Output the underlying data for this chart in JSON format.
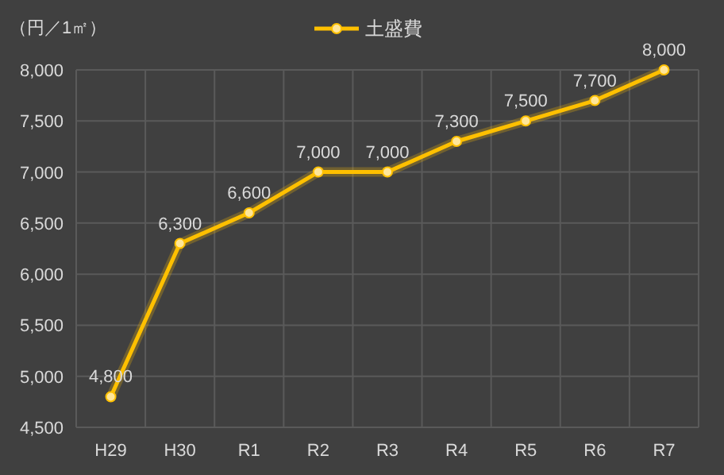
{
  "chart_data": {
    "type": "line",
    "ylabel": "（円／1㎡）",
    "categories": [
      "H29",
      "H30",
      "R1",
      "R2",
      "R3",
      "R4",
      "R5",
      "R6",
      "R7"
    ],
    "series": [
      {
        "name": "土盛費",
        "color": "#ffc000",
        "values": [
          4800,
          6300,
          6600,
          7000,
          7000,
          7300,
          7500,
          7700,
          8000
        ],
        "value_labels": [
          "4,800",
          "6,300",
          "6,600",
          "7,000",
          "7,000",
          "7,300",
          "7,500",
          "7,700",
          "8,000"
        ]
      }
    ],
    "ylim": [
      4500,
      8000
    ],
    "yticks": [
      {
        "value": 4500,
        "label": "4,500"
      },
      {
        "value": 5000,
        "label": "5,000"
      },
      {
        "value": 5500,
        "label": "5,500"
      },
      {
        "value": 6000,
        "label": "6,000"
      },
      {
        "value": 6500,
        "label": "6,500"
      },
      {
        "value": 7000,
        "label": "7,000"
      },
      {
        "value": 7500,
        "label": "7,500"
      },
      {
        "value": 8000,
        "label": "8,000"
      }
    ],
    "grid": true,
    "legend": "top",
    "marker": "circle",
    "line_style": "solid"
  }
}
